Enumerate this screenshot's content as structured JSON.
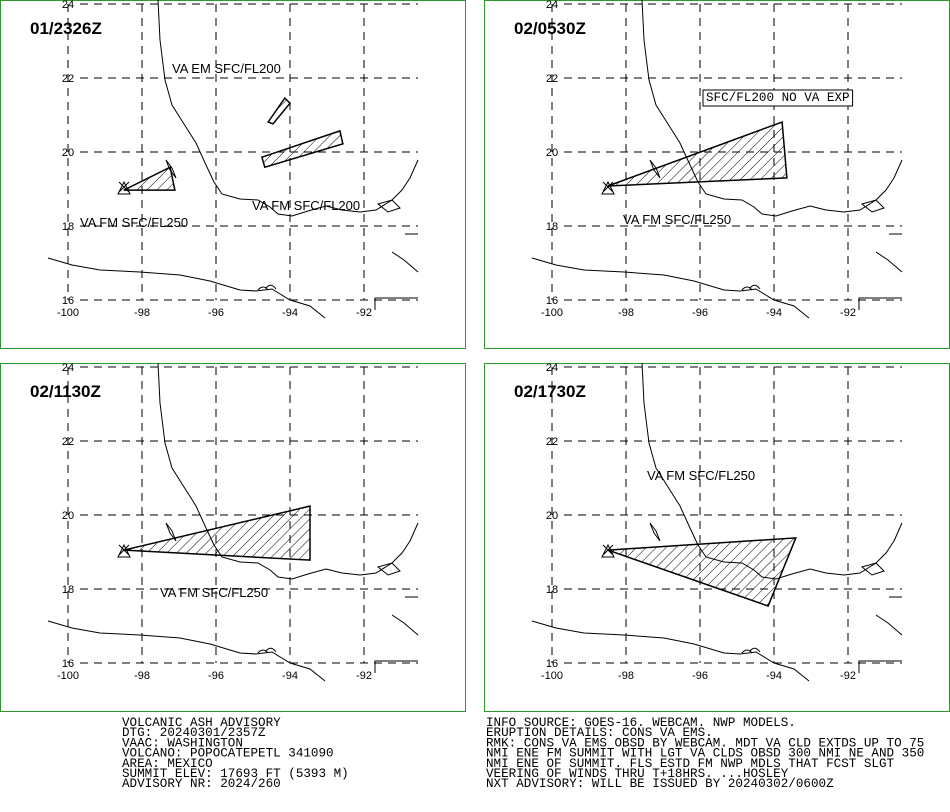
{
  "lon_ticks": [
    -100,
    -98,
    -96,
    -94,
    -92
  ],
  "lat_ticks": [
    24,
    22,
    20,
    18,
    16
  ],
  "panels": [
    {
      "time": "01/2326Z",
      "labels": [
        "VA EM SFC/FL200",
        "VA FM SFC/FL250",
        "VA FM SFC/FL200"
      ],
      "polygons": [
        [
          [
            -98.49,
            18.97
          ],
          [
            -97.24,
            19.59
          ],
          [
            -97.11,
            18.97
          ]
        ],
        [
          [
            -94.59,
            20.81
          ],
          [
            -94.14,
            21.46
          ],
          [
            -94.0,
            21.32
          ],
          [
            -94.46,
            20.76
          ]
        ],
        [
          [
            -94.76,
            19.86
          ],
          [
            -92.65,
            20.57
          ],
          [
            -92.57,
            20.22
          ],
          [
            -94.68,
            19.59
          ]
        ]
      ]
    },
    {
      "time": "02/0530Z",
      "labels": [
        "SFC/FL200 NO VA EXP",
        "VA FM SFC/FL250"
      ],
      "polygons": [
        [
          [
            -98.49,
            19.08
          ],
          [
            -93.78,
            20.81
          ],
          [
            -93.65,
            19.3
          ]
        ]
      ]
    },
    {
      "time": "02/1130Z",
      "labels": [
        "VA FM SFC/FL250"
      ],
      "polygons": [
        [
          [
            -98.49,
            19.05
          ],
          [
            -93.46,
            20.24
          ],
          [
            -93.46,
            18.78
          ]
        ]
      ]
    },
    {
      "time": "02/1730Z",
      "labels": [
        "VA FM SFC/FL250"
      ],
      "polygons": [
        [
          [
            -98.49,
            19.05
          ],
          [
            -93.41,
            19.38
          ],
          [
            -94.16,
            17.54
          ]
        ]
      ]
    }
  ],
  "advisory": [
    "VOLCANIC ASH ADVISORY",
    "DTG: 20240301/2357Z",
    "VAAC: WASHINGTON",
    "VOLCANO: POPOCATEPETL 341090",
    "AREA: MEXICO",
    "SUMMIT ELEV: 17693 FT (5393 M)",
    "ADVISORY NR: 2024/260"
  ],
  "remarks": [
    "INFO SOURCE: GOES-16. WEBCAM. NWP MODELS.",
    "ERUPTION DETAILS: CONS VA EMS.",
    "RMK: CONS VA EMS OBSD BY WEBCAM. MDT VA CLD EXTDS UP TO 75",
    "NMI ENE FM SUMMIT WITH LGT VA CLDS OBSD 300 NMI NE AND 350",
    "NMI ENE OF SUMMIT. FLS ESTD FM NWP MDLS THAT FCST SLGT",
    "VEERING OF WINDS THRU T+18HRS. ...HOSLEY",
    "NXT ADVISORY: WILL BE ISSUED BY 20240302/0600Z"
  ]
}
